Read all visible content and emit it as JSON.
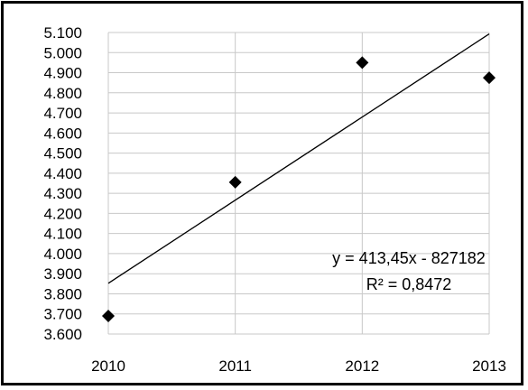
{
  "chart_data": {
    "type": "scatter",
    "title": "",
    "xlabel": "",
    "ylabel": "",
    "x": [
      2010,
      2011,
      2012,
      2013
    ],
    "y": [
      3690,
      4355,
      4950,
      4875
    ],
    "xlim": [
      2010,
      2013
    ],
    "ylim": [
      3600,
      5100
    ],
    "x_ticks": [
      "2010",
      "2011",
      "2012",
      "2013"
    ],
    "y_ticks": [
      "3.600",
      "3.700",
      "3.800",
      "3.900",
      "4.000",
      "4.100",
      "4.200",
      "4.300",
      "4.400",
      "4.500",
      "4.600",
      "4.700",
      "4.800",
      "4.900",
      "5.000",
      "5.100"
    ],
    "grid": true,
    "marker": "diamond",
    "trendline": {
      "type": "linear",
      "slope": 413.45,
      "intercept": -827182,
      "equation_label": "y = 413,45x - 827182",
      "r2_label": "R² = 0,8472"
    }
  }
}
